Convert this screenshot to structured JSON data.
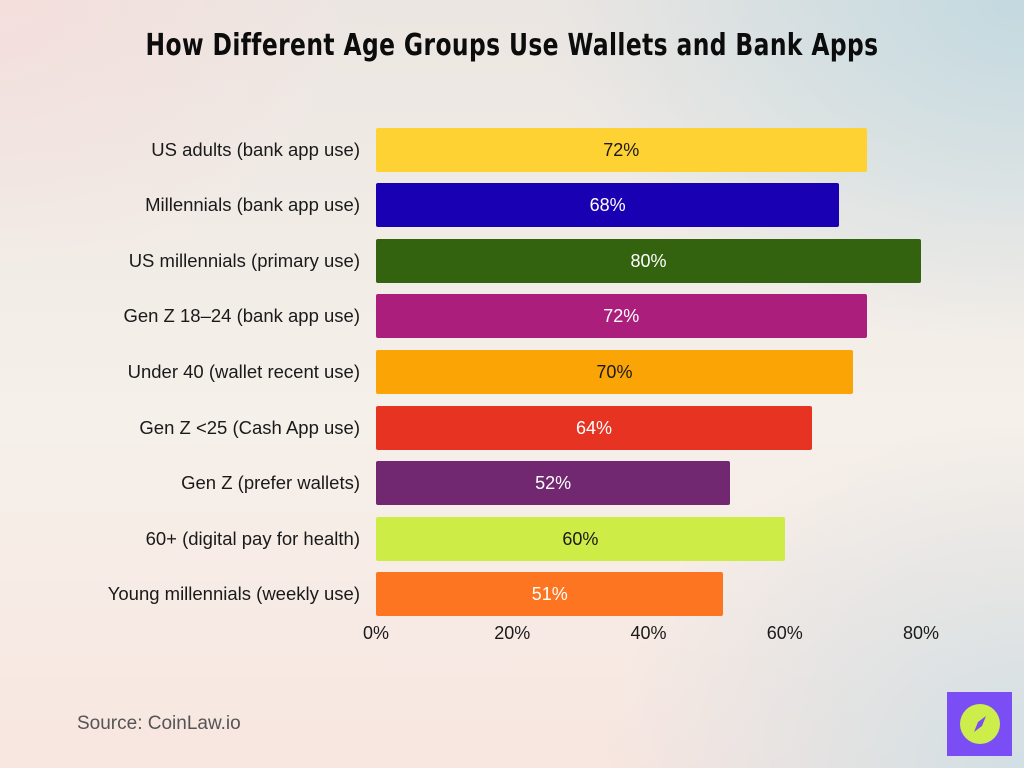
{
  "title": "How Different Age Groups Use Wallets and Bank Apps",
  "source": "Source: CoinLaw.io",
  "logo": {
    "icon": "compass-icon",
    "bg_color": "#7a4df5",
    "circle_color": "#cdee4a"
  },
  "axis": {
    "ticks": [
      "0%",
      "20%",
      "40%",
      "60%",
      "80%"
    ]
  },
  "bars": [
    {
      "label": "US adults (bank app use)",
      "value": 72,
      "text": "72%",
      "color": "#ffd233",
      "text_color": "#1a1a1a"
    },
    {
      "label": "Millennials (bank app use)",
      "value": 68,
      "text": "68%",
      "color": "#1a00b3",
      "text_color": "#ffffff"
    },
    {
      "label": "US millennials (primary use)",
      "value": 80,
      "text": "80%",
      "color": "#346310",
      "text_color": "#ffffff"
    },
    {
      "label": "Gen Z 18–24 (bank app use)",
      "value": 72,
      "text": "72%",
      "color": "#ab1e7b",
      "text_color": "#ffffff"
    },
    {
      "label": "Under 40 (wallet recent use)",
      "value": 70,
      "text": "70%",
      "color": "#faa505",
      "text_color": "#1a1a1a"
    },
    {
      "label": "Gen Z <25 (Cash App use)",
      "value": 64,
      "text": "64%",
      "color": "#e63322",
      "text_color": "#ffffff"
    },
    {
      "label": "Gen Z (prefer wallets)",
      "value": 52,
      "text": "52%",
      "color": "#722870",
      "text_color": "#ffffff"
    },
    {
      "label": "60+ (digital pay for health)",
      "value": 60,
      "text": "60%",
      "color": "#cdec46",
      "text_color": "#1a1a1a"
    },
    {
      "label": "Young millennials (weekly use)",
      "value": 51,
      "text": "51%",
      "color": "#fd7520",
      "text_color": "#ffffff"
    }
  ],
  "chart_data": {
    "type": "bar",
    "orientation": "horizontal",
    "title": "How Different Age Groups Use Wallets and Bank Apps",
    "categories": [
      "US adults (bank app use)",
      "Millennials (bank app use)",
      "US millennials (primary use)",
      "Gen Z 18–24 (bank app use)",
      "Under 40 (wallet recent use)",
      "Gen Z <25 (Cash App use)",
      "Gen Z (prefer wallets)",
      "60+ (digital pay for health)",
      "Young millennials (weekly use)"
    ],
    "values": [
      72,
      68,
      80,
      72,
      70,
      64,
      52,
      60,
      51
    ],
    "xlabel": "",
    "ylabel": "",
    "xlim": [
      0,
      80
    ],
    "xticks": [
      "0%",
      "20%",
      "40%",
      "60%",
      "80%"
    ],
    "grid": false,
    "legend": "none",
    "data_labels": true,
    "source": "Source: CoinLaw.io"
  }
}
